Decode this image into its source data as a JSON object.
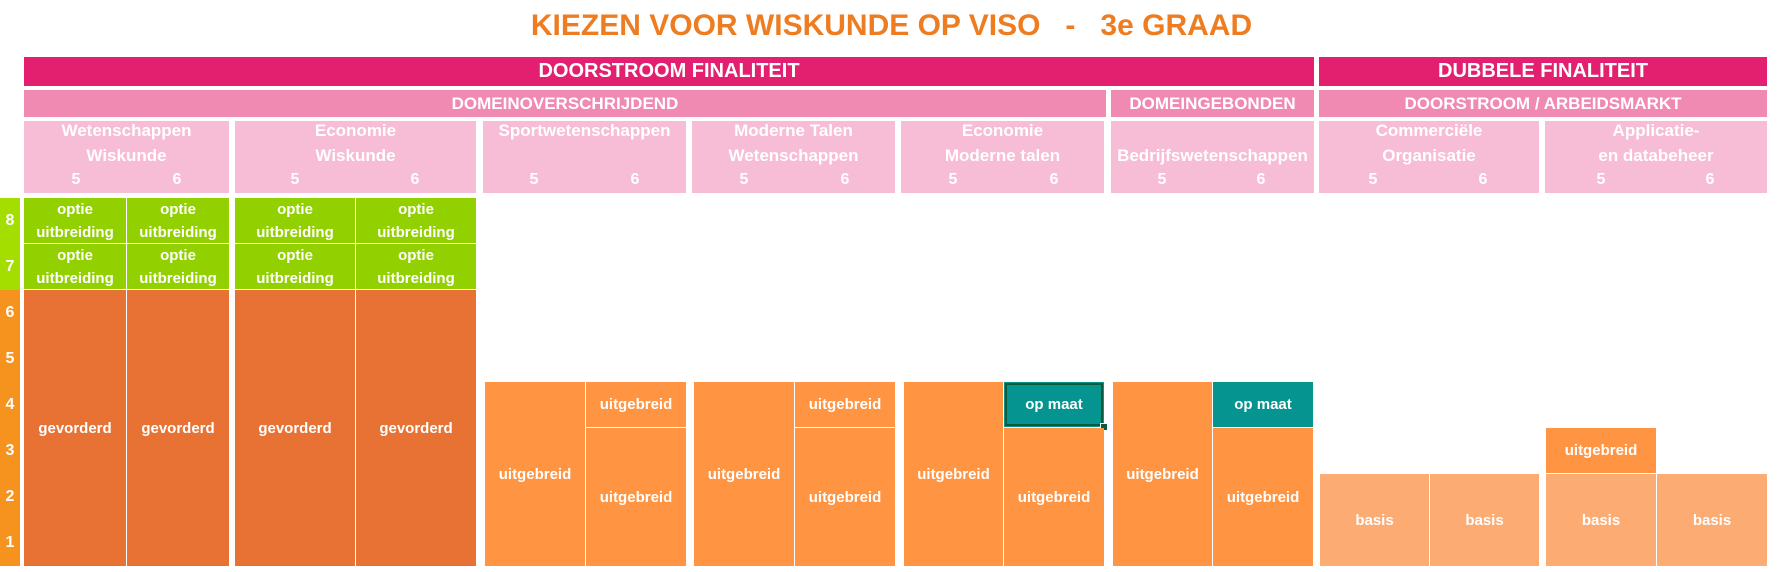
{
  "title": "KIEZEN VOOR WISKUNDE OP VISO   -   3e GRAAD",
  "bands": {
    "doorstroom": "DOORSTROOM FINALITEIT",
    "dubbele": "DUBBELE FINALITEIT",
    "domeinoverschrijdend": "DOMEINOVERSCHRIJDEND",
    "domeingebonden": "DOMEINGEBONDEN",
    "arbeidsmarkt": "DOORSTROOM / ARBEIDSMARKT"
  },
  "programs": [
    {
      "line1": "Wetenschappen",
      "line2": "Wiskunde",
      "y5": "5",
      "y6": "6"
    },
    {
      "line1": "Economie",
      "line2": "Wiskunde",
      "y5": "5",
      "y6": "6"
    },
    {
      "line1": "Sportwetenschappen",
      "line2": "",
      "y5": "5",
      "y6": "6"
    },
    {
      "line1": "Moderne Talen",
      "line2": "Wetenschappen",
      "y5": "5",
      "y6": "6"
    },
    {
      "line1": "Economie",
      "line2": "Moderne talen",
      "y5": "5",
      "y6": "6"
    },
    {
      "line1": "",
      "line2": "Bedrijfswetenschappen",
      "y5": "5",
      "y6": "6"
    },
    {
      "line1": "Commerciële",
      "line2": "Organisatie",
      "y5": "5",
      "y6": "6"
    },
    {
      "line1": "Applicatie-",
      "line2": "en databeheer",
      "y5": "5",
      "y6": "6"
    }
  ],
  "axis": [
    "8",
    "7",
    "6",
    "5",
    "4",
    "3",
    "2",
    "1"
  ],
  "labels": {
    "optie": "optie",
    "uitbreiding": "uitbreiding",
    "gevorderd": "gevorderd",
    "uitgebreid": "uitgebreid",
    "op_maat": "op maat",
    "basis": "basis"
  },
  "colors": {
    "magenta": "#e3206f",
    "pink": "#f08ab3",
    "light_pink": "#f7bcd6",
    "green": "#92d000",
    "orange_dark": "#e87233",
    "orange": "#ff9443",
    "orange_light": "#fcab72",
    "teal": "#05948f",
    "title": "#ee7d22"
  }
}
